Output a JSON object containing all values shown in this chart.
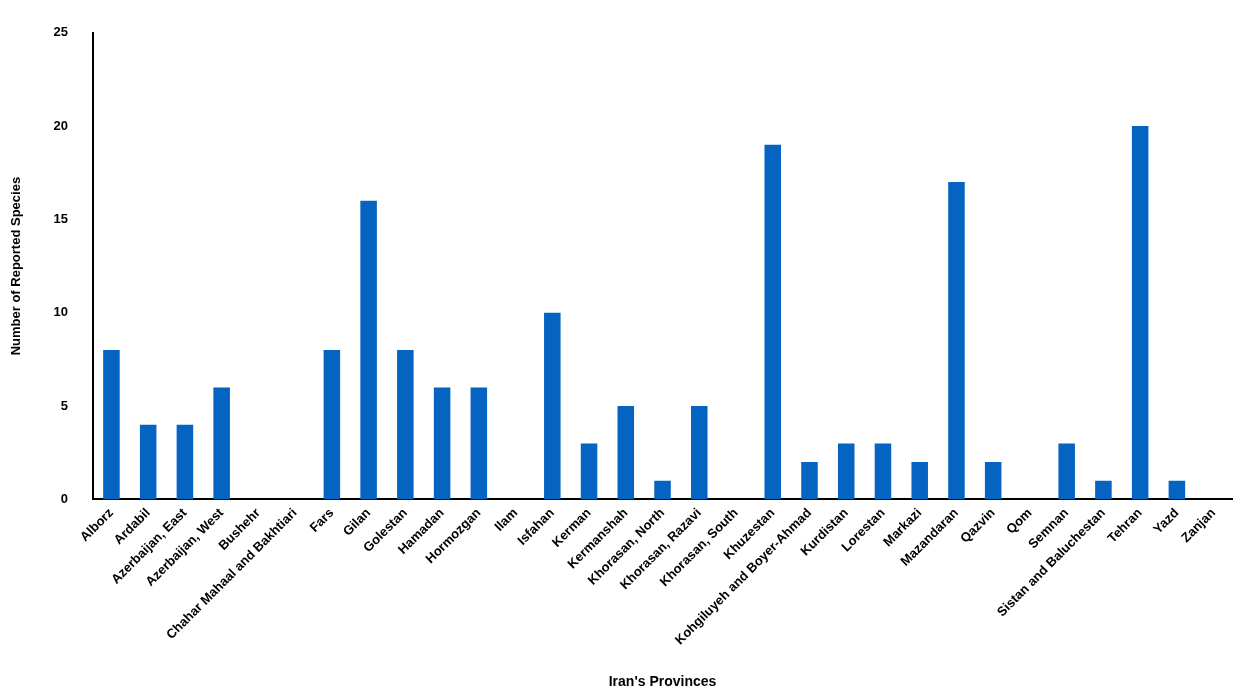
{
  "chart_data": {
    "type": "bar",
    "xlabel": "Iran's Provinces",
    "ylabel": "Number of Reported Species",
    "categories": [
      "Alborz",
      "Ardabil",
      "Azerbaijan, East",
      "Azerbaijan, West",
      "Bushehr",
      "Chahar Mahaal and Bakhtiari",
      "Fars",
      "Gilan",
      "Golestan",
      "Hamadan",
      "Hormozgan",
      "Ilam",
      "Isfahan",
      "Kerman",
      "Kermanshah",
      "Khorasan, North",
      "Khorasan, Razavi",
      "Khorasan, South",
      "Khuzestan",
      "Kohgiluyeh and Boyer-Ahmad",
      "Kurdistan",
      "Lorestan",
      "Markazi",
      "Mazandaran",
      "Qazvin",
      "Qom",
      "Semnan",
      "Sistan and Baluchestan",
      "Tehran",
      "Yazd",
      "Zanjan"
    ],
    "values": [
      8,
      4,
      4,
      6,
      0,
      0,
      8,
      16,
      8,
      6,
      6,
      0,
      10,
      3,
      5,
      1,
      5,
      0,
      19,
      2,
      3,
      3,
      2,
      17,
      2,
      0,
      3,
      1,
      20,
      1,
      0
    ],
    "color": "#0563c1",
    "ylim": [
      0,
      25
    ],
    "yticks": [
      0,
      5,
      10,
      15,
      20,
      25
    ],
    "grid": false,
    "legend": false
  }
}
